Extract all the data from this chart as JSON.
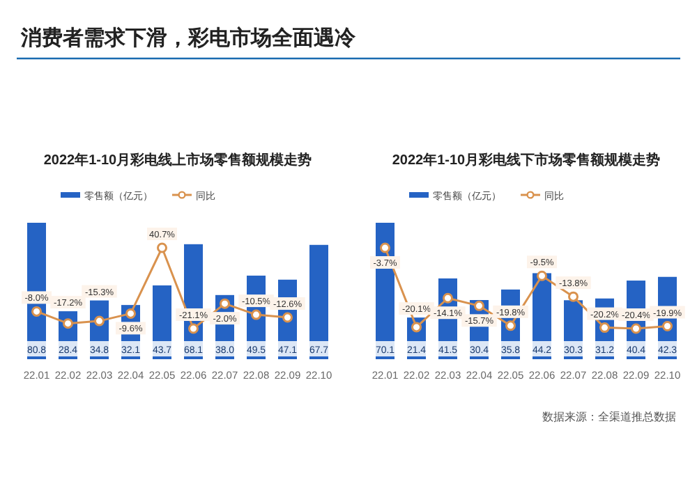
{
  "chart_data": [
    {
      "type": "other",
      "title": "消费者需求下滑，彩电市场全面遇冷",
      "annotations": [
        "数据来源：全渠道推总数据"
      ]
    },
    {
      "type": "bar",
      "title": "2022年1-10月彩电线上市场零售额规模走势",
      "categories": [
        "22.01",
        "22.02",
        "22.03",
        "22.04",
        "22.05",
        "22.06",
        "22.07",
        "22.08",
        "22.09",
        "22.10"
      ],
      "legend": "top",
      "marker": "circle",
      "series": [
        {
          "name": "零售额（亿元）",
          "type": "bar",
          "color": "#2563c4",
          "values": [
            80.8,
            28.4,
            34.8,
            32.1,
            43.7,
            68.1,
            38.0,
            49.5,
            47.1,
            67.7
          ],
          "value_labels": [
            "80.8",
            "28.4",
            "34.8",
            "32.1",
            "43.7",
            "68.1",
            "38.0",
            "49.5",
            "47.1",
            "67.7"
          ]
        },
        {
          "name": "同比",
          "type": "line",
          "axis": "y2",
          "color": "#d9924e",
          "values": [
            -8.0,
            -17.2,
            -15.3,
            -9.6,
            40.7,
            -21.1,
            -2.0,
            -10.5,
            -12.6,
            null
          ],
          "value_labels": [
            "-8.0%",
            "-17.2%",
            "-15.3%",
            "-9.6%",
            "40.7%",
            "-21.1%",
            "-2.0%",
            "-10.5%",
            "-12.6%",
            null
          ]
        }
      ]
    },
    {
      "type": "bar",
      "title": "2022年1-10月彩电线下市场零售额规模走势",
      "categories": [
        "22.01",
        "22.02",
        "22.03",
        "22.04",
        "22.05",
        "22.06",
        "22.07",
        "22.08",
        "22.09",
        "22.10"
      ],
      "legend": "top",
      "marker": "circle",
      "series": [
        {
          "name": "零售额（亿元）",
          "type": "bar",
          "color": "#2563c4",
          "values": [
            70.1,
            21.4,
            41.5,
            30.4,
            35.8,
            44.2,
            30.3,
            31.2,
            40.4,
            42.3
          ],
          "value_labels": [
            "70.1",
            "21.4",
            "41.5",
            "30.4",
            "35.8",
            "44.2",
            "30.3",
            "31.2",
            "40.4",
            "42.3"
          ]
        },
        {
          "name": "同比",
          "type": "line",
          "axis": "y2",
          "color": "#d9924e",
          "values": [
            -3.7,
            -20.1,
            -14.1,
            -15.7,
            -19.8,
            -9.5,
            -13.8,
            -20.2,
            -20.4,
            -19.9
          ],
          "value_labels": [
            "-3.7%",
            "-20.1%",
            "-14.1%",
            "-15.7%",
            "-19.8%",
            "-9.5%",
            "-13.8%",
            "-20.2%",
            "-20.4%",
            "-19.9%"
          ]
        }
      ]
    }
  ]
}
